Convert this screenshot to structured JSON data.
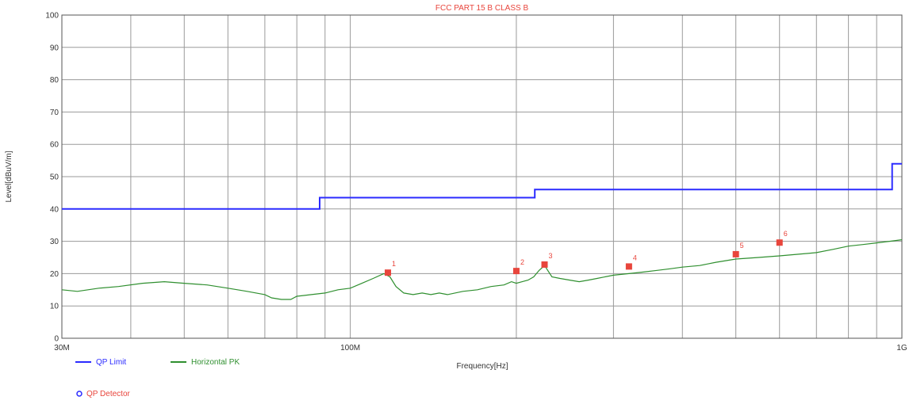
{
  "chart_data": {
    "type": "line",
    "title": "FCC PART 15 B CLASS B",
    "xlabel": "Frequency[Hz]",
    "ylabel": "Level[dBuV/m]",
    "x_scale": "log",
    "xlim": [
      30000000,
      1000000000
    ],
    "ylim": [
      0,
      100
    ],
    "yticks": [
      0,
      10,
      20,
      30,
      40,
      50,
      60,
      70,
      80,
      90,
      100
    ],
    "xtick_labels": [
      {
        "value": 30000000,
        "label": "30M"
      },
      {
        "value": 100000000,
        "label": "100M"
      },
      {
        "value": 1000000000,
        "label": "1G"
      }
    ],
    "grid": true,
    "colors": {
      "limit": "#2b2bff",
      "trace": "#2f8f2f",
      "marker": "#e8453c",
      "title": "#e8453c",
      "detector": "#2b2bff",
      "grid": "#9a9a9a"
    },
    "series": [
      {
        "name": "QP Limit",
        "x": [
          30000000,
          88000000,
          88000000,
          216000000,
          216000000,
          960000000,
          960000000,
          1000000000
        ],
        "y": [
          40,
          40,
          43.5,
          43.5,
          46,
          46,
          54,
          54
        ]
      },
      {
        "name": "Horizontal PK",
        "x": [
          30000000,
          32000000,
          35000000,
          38000000,
          42000000,
          46000000,
          50000000,
          55000000,
          60000000,
          65000000,
          70000000,
          72000000,
          75000000,
          78000000,
          80000000,
          85000000,
          90000000,
          95000000,
          100000000,
          105000000,
          110000000,
          115000000,
          118000000,
          121000000,
          125000000,
          130000000,
          135000000,
          140000000,
          145000000,
          150000000,
          160000000,
          170000000,
          180000000,
          190000000,
          196000000,
          200000000,
          205000000,
          210000000,
          215000000,
          220000000,
          225000000,
          232000000,
          240000000,
          250000000,
          260000000,
          270000000,
          280000000,
          300000000,
          320000000,
          340000000,
          360000000,
          380000000,
          400000000,
          430000000,
          460000000,
          500000000,
          550000000,
          600000000,
          650000000,
          700000000,
          750000000,
          800000000,
          850000000,
          900000000,
          950000000,
          1000000000
        ],
        "y": [
          15,
          14.5,
          15.5,
          16,
          17,
          17.5,
          17,
          16.5,
          15.5,
          14.5,
          13.5,
          12.5,
          12,
          12,
          13,
          13.5,
          14,
          15,
          15.5,
          17,
          18.5,
          20,
          19,
          16,
          14,
          13.5,
          14,
          13.5,
          14,
          13.5,
          14.5,
          15,
          16,
          16.5,
          17.5,
          17,
          17.5,
          18,
          19,
          21,
          22.5,
          19,
          18.5,
          18,
          17.5,
          18,
          18.5,
          19.5,
          20,
          20.5,
          21,
          21.5,
          22,
          22.5,
          23.5,
          24.5,
          25,
          25.5,
          26,
          26.5,
          27.5,
          28.5,
          29,
          29.5,
          30,
          30.5
        ]
      }
    ],
    "markers": [
      {
        "label": "1",
        "x": 117000000,
        "y": 20.3
      },
      {
        "label": "2",
        "x": 200000000,
        "y": 20.8
      },
      {
        "label": "3",
        "x": 225000000,
        "y": 22.8
      },
      {
        "label": "4",
        "x": 320000000,
        "y": 22.2
      },
      {
        "label": "5",
        "x": 500000000,
        "y": 26.0
      },
      {
        "label": "6",
        "x": 600000000,
        "y": 29.6
      }
    ],
    "legend": {
      "placement": "bottom-left",
      "items": [
        {
          "label": "QP Limit",
          "color": "#2b2bff",
          "kind": "line"
        },
        {
          "label": "Horizontal PK",
          "color": "#2f8f2f",
          "kind": "line"
        },
        {
          "label": "QP Detector",
          "color": "#2b2bff",
          "kind": "circle"
        }
      ]
    }
  }
}
